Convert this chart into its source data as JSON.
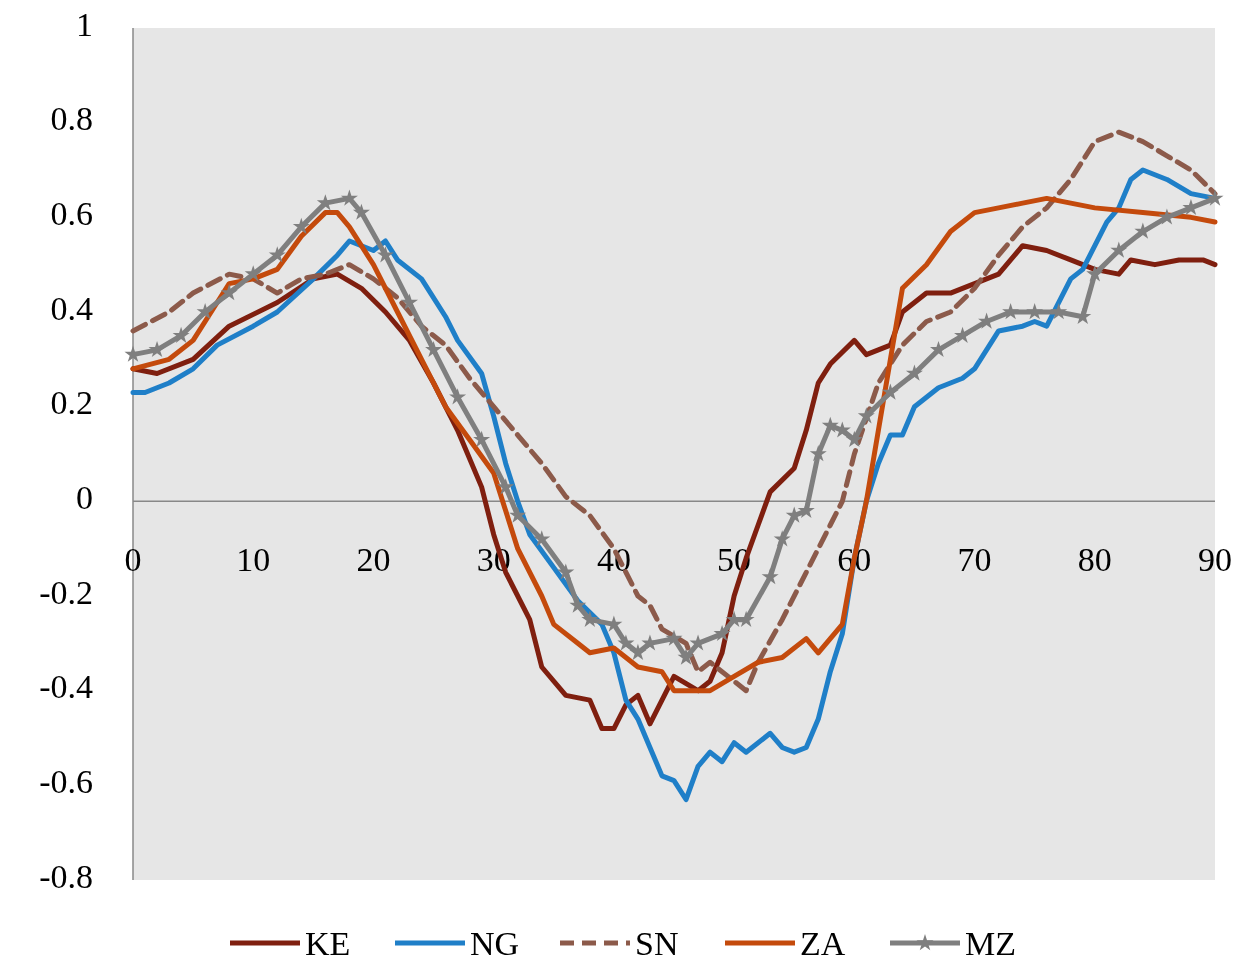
{
  "chart_data": {
    "type": "line",
    "xlim": [
      0,
      90
    ],
    "xticks": [
      0,
      10,
      20,
      30,
      40,
      50,
      60,
      70,
      80,
      90
    ],
    "ylim": [
      -0.8,
      1
    ],
    "yticks": [
      -0.8,
      -0.6,
      -0.4,
      -0.2,
      0,
      0.2,
      0.4,
      0.6,
      0.8,
      1
    ],
    "grid": false,
    "legend": "bottom",
    "series": [
      {
        "name": "KE",
        "color": "#7f1f0f",
        "line_style": "solid",
        "marker": "none",
        "x": [
          0,
          2,
          5,
          8,
          12,
          15,
          17,
          19,
          21,
          23,
          25,
          27,
          29,
          30,
          31,
          33,
          34,
          36,
          38,
          39,
          40,
          41,
          42,
          43,
          44,
          45,
          47,
          48,
          49,
          50,
          51,
          52,
          53,
          55,
          56,
          57,
          58,
          60,
          61,
          62,
          63,
          64,
          66,
          68,
          70,
          72,
          74,
          76,
          78,
          80,
          82,
          83,
          85,
          87,
          89,
          90
        ],
        "values": [
          0.28,
          0.27,
          0.3,
          0.37,
          0.42,
          0.47,
          0.48,
          0.45,
          0.4,
          0.34,
          0.25,
          0.15,
          0.03,
          -0.07,
          -0.15,
          -0.25,
          -0.35,
          -0.41,
          -0.42,
          -0.48,
          -0.48,
          -0.43,
          -0.41,
          -0.47,
          -0.42,
          -0.37,
          -0.4,
          -0.38,
          -0.32,
          -0.2,
          -0.12,
          -0.05,
          0.02,
          0.07,
          0.15,
          0.25,
          0.29,
          0.34,
          0.31,
          0.32,
          0.33,
          0.4,
          0.44,
          0.44,
          0.46,
          0.48,
          0.54,
          0.53,
          0.51,
          0.49,
          0.48,
          0.51,
          0.5,
          0.51,
          0.51,
          0.5
        ]
      },
      {
        "name": "NG",
        "color": "#1f7fc8",
        "line_style": "solid",
        "marker": "none",
        "x": [
          0,
          1,
          3,
          5,
          7,
          10,
          12,
          15,
          17,
          18,
          19,
          20,
          21,
          22,
          24,
          26,
          27,
          29,
          30,
          31,
          32,
          33,
          35,
          37,
          39,
          40,
          41,
          42,
          43,
          44,
          45,
          46,
          47,
          48,
          49,
          50,
          51,
          53,
          54,
          55,
          56,
          57,
          58,
          59,
          60,
          61,
          62,
          63,
          64,
          65,
          67,
          69,
          70,
          72,
          74,
          75,
          76,
          78,
          79,
          81,
          82,
          83,
          84,
          86,
          88,
          90
        ],
        "values": [
          0.23,
          0.23,
          0.25,
          0.28,
          0.33,
          0.37,
          0.4,
          0.47,
          0.52,
          0.55,
          0.54,
          0.53,
          0.55,
          0.51,
          0.47,
          0.39,
          0.34,
          0.27,
          0.18,
          0.08,
          0,
          -0.07,
          -0.14,
          -0.21,
          -0.26,
          -0.32,
          -0.42,
          -0.46,
          -0.52,
          -0.58,
          -0.59,
          -0.63,
          -0.56,
          -0.53,
          -0.55,
          -0.51,
          -0.53,
          -0.49,
          -0.52,
          -0.53,
          -0.52,
          -0.46,
          -0.36,
          -0.28,
          -0.12,
          0,
          0.08,
          0.14,
          0.14,
          0.2,
          0.24,
          0.26,
          0.28,
          0.36,
          0.37,
          0.38,
          0.37,
          0.47,
          0.49,
          0.59,
          0.62,
          0.68,
          0.7,
          0.68,
          0.65,
          0.64
        ]
      },
      {
        "name": "SN",
        "color": "#8c5a4a",
        "line_style": "dashed",
        "marker": "none",
        "x": [
          0,
          3,
          5,
          8,
          10,
          12,
          14,
          16,
          18,
          20,
          22,
          24,
          26,
          28,
          30,
          32,
          34,
          36,
          38,
          40,
          42,
          43,
          44,
          46,
          47,
          48,
          50,
          51,
          52,
          54,
          56,
          58,
          59,
          60,
          62,
          64,
          66,
          68,
          70,
          72,
          74,
          76,
          78,
          80,
          82,
          84,
          86,
          88,
          90
        ],
        "values": [
          0.36,
          0.4,
          0.44,
          0.48,
          0.47,
          0.44,
          0.47,
          0.48,
          0.5,
          0.47,
          0.43,
          0.37,
          0.33,
          0.26,
          0.2,
          0.14,
          0.08,
          0.01,
          -0.03,
          -0.1,
          -0.2,
          -0.22,
          -0.27,
          -0.3,
          -0.36,
          -0.34,
          -0.38,
          -0.4,
          -0.34,
          -0.25,
          -0.15,
          -0.05,
          0,
          0.1,
          0.25,
          0.33,
          0.38,
          0.4,
          0.45,
          0.52,
          0.58,
          0.62,
          0.68,
          0.76,
          0.78,
          0.76,
          0.73,
          0.7,
          0.65
        ]
      },
      {
        "name": "ZA",
        "color": "#c44a0c",
        "line_style": "solid",
        "marker": "none",
        "x": [
          0,
          3,
          5,
          7,
          8,
          10,
          12,
          14,
          16,
          17,
          18,
          20,
          22,
          24,
          26,
          28,
          30,
          31,
          32,
          34,
          35,
          37,
          38,
          40,
          42,
          44,
          45,
          47,
          48,
          50,
          52,
          54,
          56,
          57,
          59,
          60,
          61,
          62,
          63,
          64,
          66,
          68,
          70,
          72,
          74,
          76,
          78,
          80,
          84,
          88,
          90
        ],
        "values": [
          0.28,
          0.3,
          0.34,
          0.42,
          0.46,
          0.47,
          0.49,
          0.56,
          0.61,
          0.61,
          0.58,
          0.5,
          0.4,
          0.3,
          0.2,
          0.13,
          0.06,
          -0.02,
          -0.1,
          -0.2,
          -0.26,
          -0.3,
          -0.32,
          -0.31,
          -0.35,
          -0.36,
          -0.4,
          -0.4,
          -0.4,
          -0.37,
          -0.34,
          -0.33,
          -0.29,
          -0.32,
          -0.26,
          -0.12,
          0,
          0.15,
          0.3,
          0.45,
          0.5,
          0.57,
          0.61,
          0.62,
          0.63,
          0.64,
          0.63,
          0.62,
          0.61,
          0.6,
          0.59
        ]
      },
      {
        "name": "MZ",
        "color": "#7f7f7f",
        "line_style": "solid",
        "marker": "star",
        "x": [
          0,
          2,
          4,
          6,
          8,
          10,
          12,
          14,
          16,
          18,
          19,
          21,
          23,
          25,
          27,
          29,
          31,
          32,
          34,
          36,
          37,
          38,
          40,
          41,
          42,
          43,
          45,
          46,
          47,
          49,
          50,
          51,
          53,
          54,
          55,
          56,
          57,
          58,
          59,
          60,
          61,
          63,
          65,
          67,
          69,
          71,
          73,
          75,
          77,
          79,
          80,
          82,
          84,
          86,
          88,
          90
        ],
        "values": [
          0.31,
          0.32,
          0.35,
          0.4,
          0.44,
          0.48,
          0.52,
          0.58,
          0.63,
          0.64,
          0.61,
          0.52,
          0.42,
          0.32,
          0.22,
          0.13,
          0.03,
          -0.03,
          -0.08,
          -0.15,
          -0.22,
          -0.25,
          -0.26,
          -0.3,
          -0.32,
          -0.3,
          -0.29,
          -0.33,
          -0.3,
          -0.28,
          -0.25,
          -0.25,
          -0.16,
          -0.08,
          -0.03,
          -0.02,
          0.1,
          0.16,
          0.15,
          0.13,
          0.18,
          0.23,
          0.27,
          0.32,
          0.35,
          0.38,
          0.4,
          0.4,
          0.4,
          0.39,
          0.48,
          0.53,
          0.57,
          0.6,
          0.62,
          0.64
        ]
      }
    ]
  }
}
